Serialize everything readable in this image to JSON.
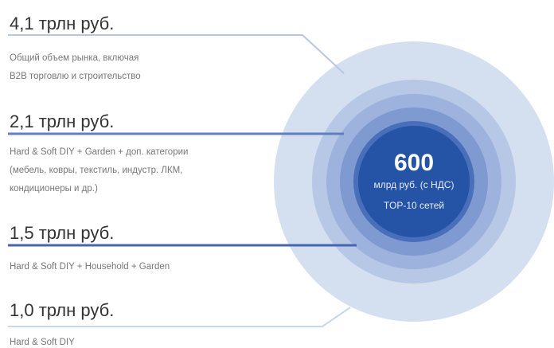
{
  "items": [
    {
      "value": "4,1 трлн руб.",
      "description": [
        "Общий объем рынка, включая",
        "B2B торговлю и строительство"
      ]
    },
    {
      "value": "2,1 трлн руб.",
      "description": [
        "Hard & Soft DIY + Garden + доп. категории",
        "(мебель, ковры, текстиль, индустр. ЛКМ,",
        "кондиционеры и др.)"
      ]
    },
    {
      "value": "1,5 трлн руб.",
      "description": [
        "Hard & Soft DIY + Household + Garden"
      ]
    },
    {
      "value": "1,0 трлн руб.",
      "description": [
        "Hard & Soft DIY"
      ]
    }
  ],
  "center": {
    "value": "600",
    "unit": "млрд руб. (с НДС)",
    "caption": "TOP-10 сетей"
  }
}
